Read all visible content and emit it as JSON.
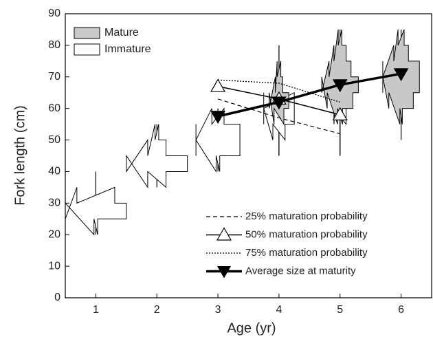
{
  "chart_data": {
    "type": "kite",
    "xlabel": "Age (yr)",
    "ylabel": "Fork length (cm)",
    "xlim": [
      0.5,
      6.5
    ],
    "xticks": [
      1,
      2,
      3,
      4,
      5,
      6
    ],
    "ylim": [
      0,
      90
    ],
    "yticks": [
      0,
      10,
      20,
      30,
      40,
      50,
      60,
      70,
      80,
      90
    ],
    "legend_position": "upper left",
    "kites": [
      {
        "name": "Immature",
        "color": "#ffffff",
        "groups": [
          {
            "age": 1,
            "bins": [
              20,
              25,
              30,
              35
            ],
            "half_widths": [
              0.03,
              0.5,
              0.31
            ],
            "range": [
              20,
              40
            ]
          },
          {
            "age": 2,
            "bins": [
              35,
              40,
              45,
              50,
              55
            ],
            "half_widths": [
              0.15,
              0.5,
              0.15,
              0.03
            ],
            "range": [
              35,
              55
            ]
          },
          {
            "age": 3,
            "bins": [
              40,
              45,
              50,
              55,
              60
            ],
            "half_widths": [
              0.03,
              0.36,
              0.36,
              0.1
            ],
            "range": [
              40,
              60
            ]
          },
          {
            "age": 4,
            "bins": [
              50,
              55,
              60,
              65
            ],
            "half_widths": [
              0.1,
              0.25,
              0.25
            ],
            "range": [
              45,
              65
            ]
          },
          {
            "age": 5,
            "bins": [
              55,
              60,
              65
            ],
            "half_widths": [
              0.1,
              0.06
            ],
            "range": [
              45,
              65
            ]
          }
        ]
      },
      {
        "name": "Mature",
        "color": "#c8c8c8",
        "groups": [
          {
            "age": 4,
            "bins": [
              55,
              60,
              65,
              70,
              75
            ],
            "half_widths": [
              0.08,
              0.16,
              0.06,
              0.03
            ],
            "range": [
              45,
              80
            ]
          },
          {
            "age": 5,
            "bins": [
              55,
              60,
              65,
              70,
              75,
              80,
              85
            ],
            "half_widths": [
              0.04,
              0.21,
              0.3,
              0.18,
              0.1,
              0.03
            ],
            "range": [
              45,
              85
            ]
          },
          {
            "age": 6,
            "bins": [
              55,
              60,
              65,
              70,
              75,
              80,
              85
            ],
            "half_widths": [
              0.02,
              0.2,
              0.3,
              0.3,
              0.12,
              0.05
            ],
            "range": [
              50,
              85
            ]
          }
        ]
      }
    ],
    "series": [
      {
        "name": "25% maturation probability",
        "color": "#000000",
        "dash": "dashed",
        "marker": "none",
        "line_width": 1.2,
        "x": [
          3,
          4,
          5
        ],
        "values": [
          63,
          57,
          52
        ]
      },
      {
        "name": "50% maturation probability",
        "color": "#000000",
        "dash": "solid",
        "marker": "triangle-open",
        "line_width": 1.5,
        "x": [
          3,
          4,
          5
        ],
        "values": [
          67,
          63,
          58
        ]
      },
      {
        "name": "75% maturation probability",
        "color": "#000000",
        "dash": "dotted",
        "marker": "none",
        "line_width": 1.3,
        "x": [
          3,
          4,
          5
        ],
        "values": [
          69,
          68,
          62
        ]
      },
      {
        "name": "Average size at maturity",
        "color": "#000000",
        "dash": "solid",
        "marker": "triangle-down-filled",
        "line_width": 3.5,
        "x": [
          3,
          4,
          5,
          6
        ],
        "values": [
          57.5,
          62,
          67.5,
          71
        ]
      }
    ]
  }
}
